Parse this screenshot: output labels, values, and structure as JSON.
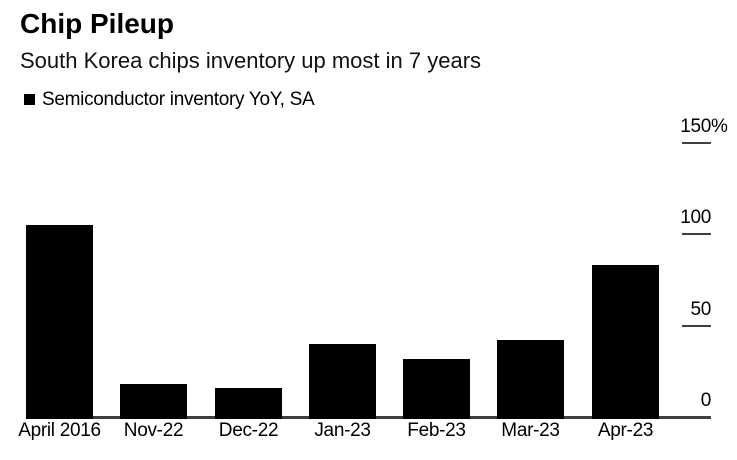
{
  "chart_data": {
    "type": "bar",
    "title": "Chip Pileup",
    "subtitle": "South Korea chips inventory up most in 7 years",
    "legend": [
      "Semiconductor inventory YoY, SA"
    ],
    "legend_position": "top-left",
    "categories": [
      "April 2016",
      "Nov-22",
      "Dec-22",
      "Jan-23",
      "Feb-23",
      "Mar-23",
      "Apr-23"
    ],
    "values": [
      105,
      18,
      16,
      40,
      32,
      42,
      83
    ],
    "unit": "%",
    "xlabel": "",
    "ylabel": "",
    "ylim": [
      0,
      150
    ],
    "y_ticks": [
      {
        "value": 150,
        "label": "150",
        "suffix": "%"
      },
      {
        "value": 100,
        "label": "100",
        "suffix": ""
      },
      {
        "value": 50,
        "label": "50",
        "suffix": ""
      },
      {
        "value": 0,
        "label": "0",
        "suffix": ""
      }
    ],
    "grid": false,
    "tick_style": "dash-right-side",
    "colors": {
      "bar": "#000000",
      "axis": "#3f3f3f",
      "text": "#000000",
      "background": "#ffffff"
    }
  }
}
